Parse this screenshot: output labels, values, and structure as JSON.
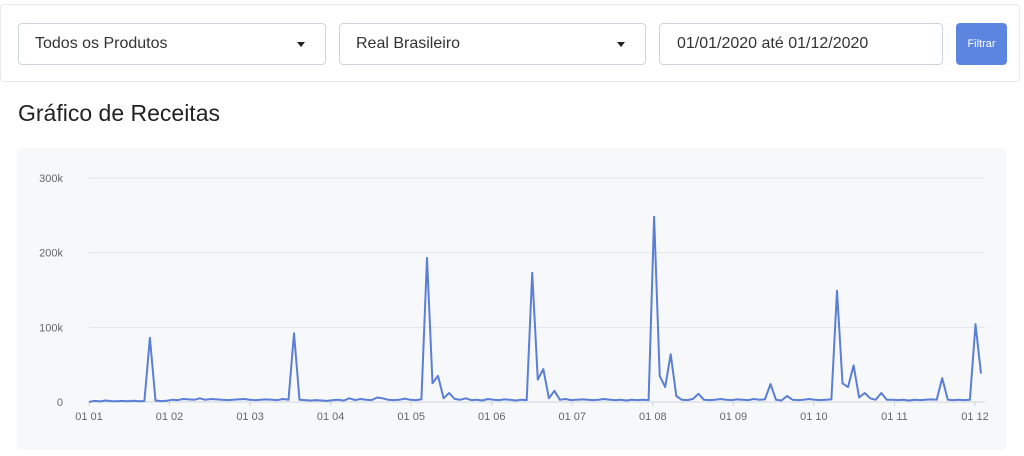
{
  "filters": {
    "product_select": {
      "value": "Todos os Produtos"
    },
    "currency_select": {
      "value": "Real Brasileiro"
    },
    "date_range": {
      "value": "01/01/2020 até 01/12/2020"
    },
    "filter_button": {
      "label": "Filtrar"
    }
  },
  "chart_title": "Gráfico de Receitas",
  "chart_data": {
    "type": "line",
    "title": "Gráfico de Receitas",
    "xlabel": "",
    "ylabel": "",
    "ylim": [
      0,
      300000
    ],
    "y_ticks": [
      "0",
      "100k",
      "200k",
      "300k"
    ],
    "y_tick_values": [
      0,
      100000,
      200000,
      300000
    ],
    "x_ticks": [
      "01 01",
      "01 02",
      "01 03",
      "01 04",
      "01 05",
      "01 06",
      "01 07",
      "01 08",
      "01 09",
      "01 10",
      "01 11",
      "01 12"
    ],
    "grid": true,
    "legend": "none",
    "line_color": "#5b7fd6",
    "series": [
      {
        "points": [
          [
            "01 01",
            0
          ],
          [
            "01 01",
            1500
          ],
          [
            "01 01",
            800
          ],
          [
            "01 01",
            2000
          ],
          [
            "01 01",
            1200
          ],
          [
            "01 01",
            900
          ],
          [
            "01 01",
            1500
          ],
          [
            "01 01",
            1000
          ],
          [
            "01 01",
            1800
          ],
          [
            "01 01",
            1100
          ],
          [
            "01 01",
            1400
          ],
          [
            "01 01",
            86000
          ],
          [
            "01 01",
            2000
          ],
          [
            "01 01",
            1200
          ],
          [
            "01 01",
            1800
          ],
          [
            "01 02",
            3000
          ],
          [
            "01 02",
            2500
          ],
          [
            "01 02",
            4000
          ],
          [
            "01 02",
            3500
          ],
          [
            "01 02",
            3000
          ],
          [
            "01 02",
            5000
          ],
          [
            "01 02",
            3000
          ],
          [
            "01 02",
            4000
          ],
          [
            "01 02",
            3500
          ],
          [
            "01 02",
            3000
          ],
          [
            "01 02",
            2500
          ],
          [
            "01 02",
            3000
          ],
          [
            "01 02",
            3500
          ],
          [
            "01 02",
            4000
          ],
          [
            "01 02",
            3000
          ],
          [
            "01 03",
            2500
          ],
          [
            "01 03",
            3000
          ],
          [
            "01 03",
            3500
          ],
          [
            "01 03",
            3000
          ],
          [
            "01 03",
            2500
          ],
          [
            "01 03",
            4000
          ],
          [
            "01 03",
            3000
          ],
          [
            "01 03",
            92000
          ],
          [
            "01 03",
            3000
          ],
          [
            "01 03",
            2500
          ],
          [
            "01 04",
            2000
          ],
          [
            "01 04",
            2500
          ],
          [
            "01 04",
            2000
          ],
          [
            "01 04",
            1500
          ],
          [
            "01 04",
            2500
          ],
          [
            "01 04",
            3000
          ],
          [
            "01 04",
            2000
          ],
          [
            "01 04",
            5000
          ],
          [
            "01 04",
            2500
          ],
          [
            "01 04",
            4000
          ],
          [
            "01 04",
            3000
          ],
          [
            "01 04",
            2500
          ],
          [
            "01 04",
            6000
          ],
          [
            "01 04",
            5000
          ],
          [
            "01 04",
            3000
          ],
          [
            "01 05",
            2500
          ],
          [
            "01 05",
            3000
          ],
          [
            "01 05",
            4500
          ],
          [
            "01 05",
            3000
          ],
          [
            "01 05",
            2500
          ],
          [
            "01 05",
            3500
          ],
          [
            "01 05",
            193000
          ],
          [
            "01 05",
            25000
          ],
          [
            "01 05",
            35000
          ],
          [
            "01 05",
            5000
          ],
          [
            "01 05",
            12000
          ],
          [
            "01 05",
            4000
          ],
          [
            "01 05",
            3000
          ],
          [
            "01 05",
            5000
          ],
          [
            "01 05",
            2500
          ],
          [
            "01 06",
            3000
          ],
          [
            "01 06",
            2000
          ],
          [
            "01 06",
            4000
          ],
          [
            "01 06",
            3000
          ],
          [
            "01 06",
            2500
          ],
          [
            "01 06",
            3500
          ],
          [
            "01 06",
            3000
          ],
          [
            "01 06",
            2000
          ],
          [
            "01 06",
            3000
          ],
          [
            "01 06",
            2500
          ],
          [
            "01 06",
            173000
          ],
          [
            "01 06",
            30000
          ],
          [
            "01 06",
            44000
          ],
          [
            "01 06",
            5000
          ],
          [
            "01 06",
            15000
          ],
          [
            "01 07",
            3000
          ],
          [
            "01 07",
            4000
          ],
          [
            "01 07",
            2500
          ],
          [
            "01 07",
            3000
          ],
          [
            "01 07",
            3500
          ],
          [
            "01 07",
            3000
          ],
          [
            "01 07",
            2500
          ],
          [
            "01 07",
            3000
          ],
          [
            "01 07",
            4000
          ],
          [
            "01 07",
            3000
          ],
          [
            "01 07",
            2500
          ],
          [
            "01 07",
            3000
          ],
          [
            "01 07",
            2000
          ],
          [
            "01 07",
            3000
          ],
          [
            "01 07",
            2500
          ],
          [
            "01 08",
            3000
          ],
          [
            "01 08",
            2500
          ],
          [
            "01 08",
            248000
          ],
          [
            "01 08",
            35000
          ],
          [
            "01 08",
            20000
          ],
          [
            "01 08",
            64000
          ],
          [
            "01 08",
            8000
          ],
          [
            "01 08",
            3000
          ],
          [
            "01 08",
            2500
          ],
          [
            "01 08",
            4000
          ],
          [
            "01 08",
            11000
          ],
          [
            "01 08",
            3000
          ],
          [
            "01 08",
            2500
          ],
          [
            "01 08",
            3000
          ],
          [
            "01 08",
            4000
          ],
          [
            "01 09",
            3000
          ],
          [
            "01 09",
            2500
          ],
          [
            "01 09",
            3500
          ],
          [
            "01 09",
            3000
          ],
          [
            "01 09",
            2500
          ],
          [
            "01 09",
            4000
          ],
          [
            "01 09",
            3000
          ],
          [
            "01 09",
            3500
          ],
          [
            "01 09",
            24000
          ],
          [
            "01 09",
            3000
          ],
          [
            "01 09",
            2000
          ],
          [
            "01 09",
            8000
          ],
          [
            "01 09",
            3000
          ],
          [
            "01 09",
            2500
          ],
          [
            "01 09",
            3000
          ],
          [
            "01 10",
            4000
          ],
          [
            "01 10",
            3000
          ],
          [
            "01 10",
            2500
          ],
          [
            "01 10",
            3000
          ],
          [
            "01 10",
            3500
          ],
          [
            "01 10",
            149000
          ],
          [
            "01 10",
            25000
          ],
          [
            "01 10",
            20000
          ],
          [
            "01 10",
            49000
          ],
          [
            "01 10",
            6000
          ],
          [
            "01 10",
            12000
          ],
          [
            "01 10",
            5000
          ],
          [
            "01 10",
            3000
          ],
          [
            "01 10",
            12000
          ],
          [
            "01 10",
            3000
          ],
          [
            "01 11",
            3000
          ],
          [
            "01 11",
            2500
          ],
          [
            "01 11",
            3000
          ],
          [
            "01 11",
            2000
          ],
          [
            "01 11",
            3000
          ],
          [
            "01 11",
            2500
          ],
          [
            "01 11",
            3000
          ],
          [
            "01 11",
            3500
          ],
          [
            "01 11",
            3000
          ],
          [
            "01 11",
            32000
          ],
          [
            "01 11",
            3000
          ],
          [
            "01 11",
            2500
          ],
          [
            "01 11",
            3000
          ],
          [
            "01 11",
            2500
          ],
          [
            "01 11",
            3000
          ],
          [
            "01 12",
            104000
          ],
          [
            "01 12",
            38000
          ]
        ]
      }
    ]
  }
}
